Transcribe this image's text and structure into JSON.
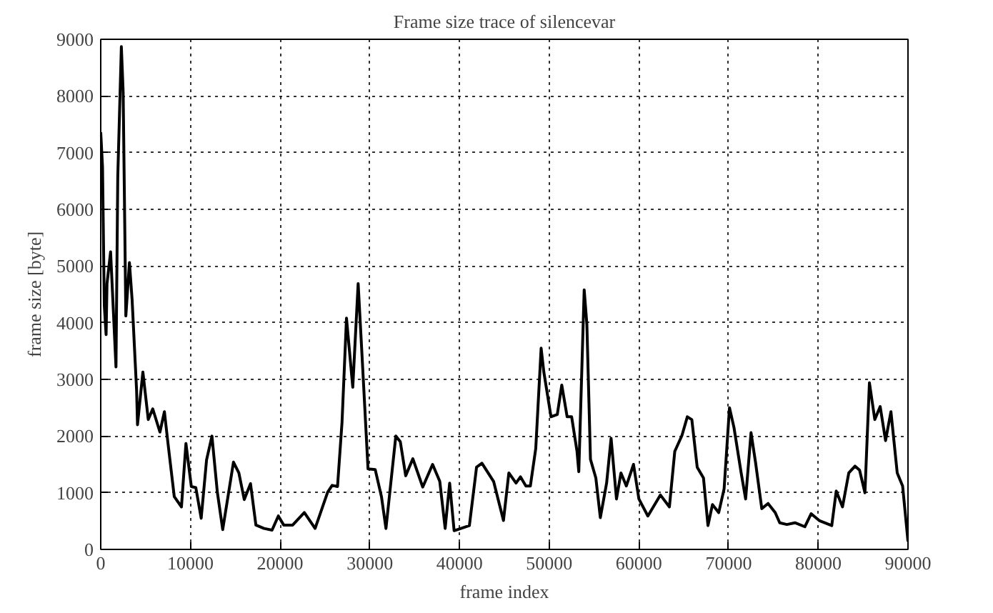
{
  "chart_data": {
    "type": "line",
    "title": "Frame size trace of silencevar",
    "xlabel": "frame index",
    "ylabel": "frame size [byte]",
    "xlim": [
      0,
      90000
    ],
    "xticks": [
      0,
      10000,
      20000,
      30000,
      40000,
      50000,
      60000,
      70000,
      80000,
      90000
    ],
    "ylim": [
      0,
      9000
    ],
    "yticks": [
      0,
      1000,
      2000,
      3000,
      4000,
      5000,
      6000,
      7000,
      8000,
      9000
    ],
    "grid": true,
    "marker": "none",
    "line_style": "solid",
    "series": [
      {
        "color": "#000000",
        "x": [
          0,
          200,
          400,
          600,
          700,
          1100,
          1700,
          1900,
          2300,
          2500,
          2800,
          3200,
          3500,
          4000,
          4100,
          4700,
          5300,
          5800,
          6600,
          7100,
          7500,
          8200,
          9000,
          9500,
          10100,
          10600,
          11200,
          11800,
          12400,
          13000,
          13600,
          14800,
          15400,
          16000,
          16700,
          17300,
          18200,
          19100,
          19800,
          20400,
          21400,
          22700,
          23900,
          25300,
          25800,
          26400,
          26900,
          27400,
          28100,
          28700,
          29200,
          29800,
          30600,
          31300,
          31800,
          32900,
          33400,
          34000,
          34800,
          35900,
          37000,
          37800,
          38400,
          38900,
          39400,
          41100,
          41900,
          42500,
          43800,
          44900,
          45500,
          46300,
          46800,
          47400,
          47900,
          48500,
          49100,
          49400,
          50200,
          50900,
          51400,
          52000,
          52500,
          53100,
          53300,
          53900,
          54200,
          54600,
          55200,
          55700,
          56400,
          56900,
          57500,
          58000,
          58600,
          59400,
          60000,
          61000,
          62400,
          63400,
          64000,
          64800,
          65400,
          65900,
          66500,
          67200,
          67700,
          68200,
          68900,
          69500,
          70100,
          70600,
          71400,
          71900,
          72500,
          73000,
          73700,
          74400,
          75200,
          75700,
          76500,
          77400,
          78500,
          79200,
          80100,
          81500,
          82000,
          82700,
          83400,
          84100,
          84600,
          85200,
          85700,
          86300,
          86900,
          87500,
          88100,
          88800,
          89400,
          90000
        ],
        "values": [
          7360,
          6750,
          4300,
          3790,
          4690,
          5250,
          3220,
          6570,
          8870,
          8070,
          4120,
          5060,
          4400,
          2800,
          2200,
          3130,
          2290,
          2480,
          2070,
          2430,
          1870,
          930,
          750,
          1870,
          1110,
          1090,
          550,
          1580,
          2000,
          1010,
          350,
          1540,
          1350,
          880,
          1160,
          430,
          370,
          340,
          590,
          430,
          430,
          650,
          370,
          1010,
          1130,
          1110,
          2240,
          4080,
          2860,
          4690,
          3220,
          1420,
          1410,
          930,
          370,
          2000,
          1900,
          1300,
          1600,
          1100,
          1500,
          1200,
          370,
          1170,
          330,
          420,
          1450,
          1520,
          1200,
          510,
          1350,
          1170,
          1280,
          1120,
          1120,
          1780,
          3550,
          3130,
          2340,
          2380,
          2900,
          2340,
          2340,
          1730,
          1370,
          4580,
          3970,
          1590,
          1260,
          560,
          1170,
          1960,
          890,
          1350,
          1120,
          1500,
          890,
          590,
          960,
          750,
          1730,
          2010,
          2340,
          2290,
          1450,
          1260,
          420,
          790,
          650,
          1070,
          2500,
          2150,
          1350,
          890,
          2060,
          1540,
          720,
          810,
          650,
          470,
          440,
          470,
          400,
          630,
          510,
          420,
          1030,
          750,
          1350,
          1470,
          1400,
          1000,
          2940,
          2290,
          2520,
          1920,
          2430,
          1350,
          1120,
          140
        ]
      }
    ]
  }
}
